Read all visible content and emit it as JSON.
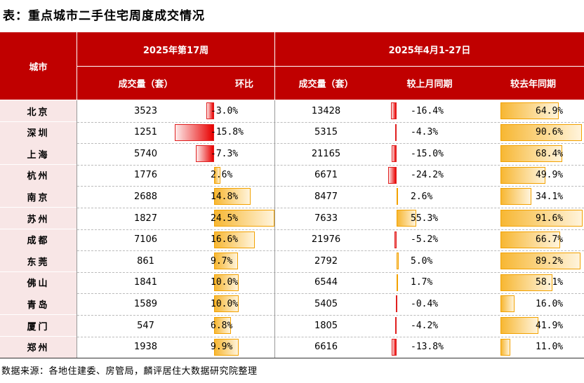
{
  "title": "表：重点城市二手住宅周度成交情况",
  "header": {
    "city": "城市",
    "week_group": "2025年第17周",
    "month_group": "2025年4月1-27日",
    "col_volume_week": "成交量（套）",
    "col_wow": "环比",
    "col_volume_month": "成交量（套）",
    "col_mom": "较上月同期",
    "col_yoy": "较去年同期"
  },
  "rows": [
    {
      "city": "北京",
      "week_volume": "3523",
      "wow": "-3.0%",
      "month_volume": "13428",
      "mom": "-16.4%",
      "yoy": "64.9%"
    },
    {
      "city": "深圳",
      "week_volume": "1251",
      "wow": "-15.8%",
      "month_volume": "5315",
      "mom": "-4.3%",
      "yoy": "90.6%"
    },
    {
      "city": "上海",
      "week_volume": "5740",
      "wow": "-7.3%",
      "month_volume": "21165",
      "mom": "-15.0%",
      "yoy": "68.4%"
    },
    {
      "city": "杭州",
      "week_volume": "1776",
      "wow": "2.6%",
      "month_volume": "6671",
      "mom": "-24.2%",
      "yoy": "49.9%"
    },
    {
      "city": "南京",
      "week_volume": "2688",
      "wow": "14.8%",
      "month_volume": "8477",
      "mom": "2.6%",
      "yoy": "34.1%"
    },
    {
      "city": "苏州",
      "week_volume": "1827",
      "wow": "24.5%",
      "month_volume": "7633",
      "mom": "55.3%",
      "yoy": "91.6%"
    },
    {
      "city": "成都",
      "week_volume": "7106",
      "wow": "16.6%",
      "month_volume": "21976",
      "mom": "-5.2%",
      "yoy": "66.7%"
    },
    {
      "city": "东莞",
      "week_volume": "861",
      "wow": "9.7%",
      "month_volume": "2792",
      "mom": "5.0%",
      "yoy": "89.2%"
    },
    {
      "city": "佛山",
      "week_volume": "1841",
      "wow": "10.0%",
      "month_volume": "6544",
      "mom": "1.7%",
      "yoy": "58.1%"
    },
    {
      "city": "青岛",
      "week_volume": "1589",
      "wow": "10.0%",
      "month_volume": "5405",
      "mom": "-0.4%",
      "yoy": "16.0%"
    },
    {
      "city": "厦门",
      "week_volume": "547",
      "wow": "6.8%",
      "month_volume": "1805",
      "mom": "-4.2%",
      "yoy": "41.9%"
    },
    {
      "city": "郑州",
      "week_volume": "1938",
      "wow": "9.9%",
      "month_volume": "6616",
      "mom": "-13.8%",
      "yoy": "11.0%"
    }
  ],
  "source": "数据来源：各地住建委、房管局，麟评居住大数据研究院整理",
  "colors": {
    "header_bg": "#C00000",
    "city_bg": "#F8E6E6",
    "neg_bar": "#E80000",
    "pos_bar": "#F7B733"
  }
}
